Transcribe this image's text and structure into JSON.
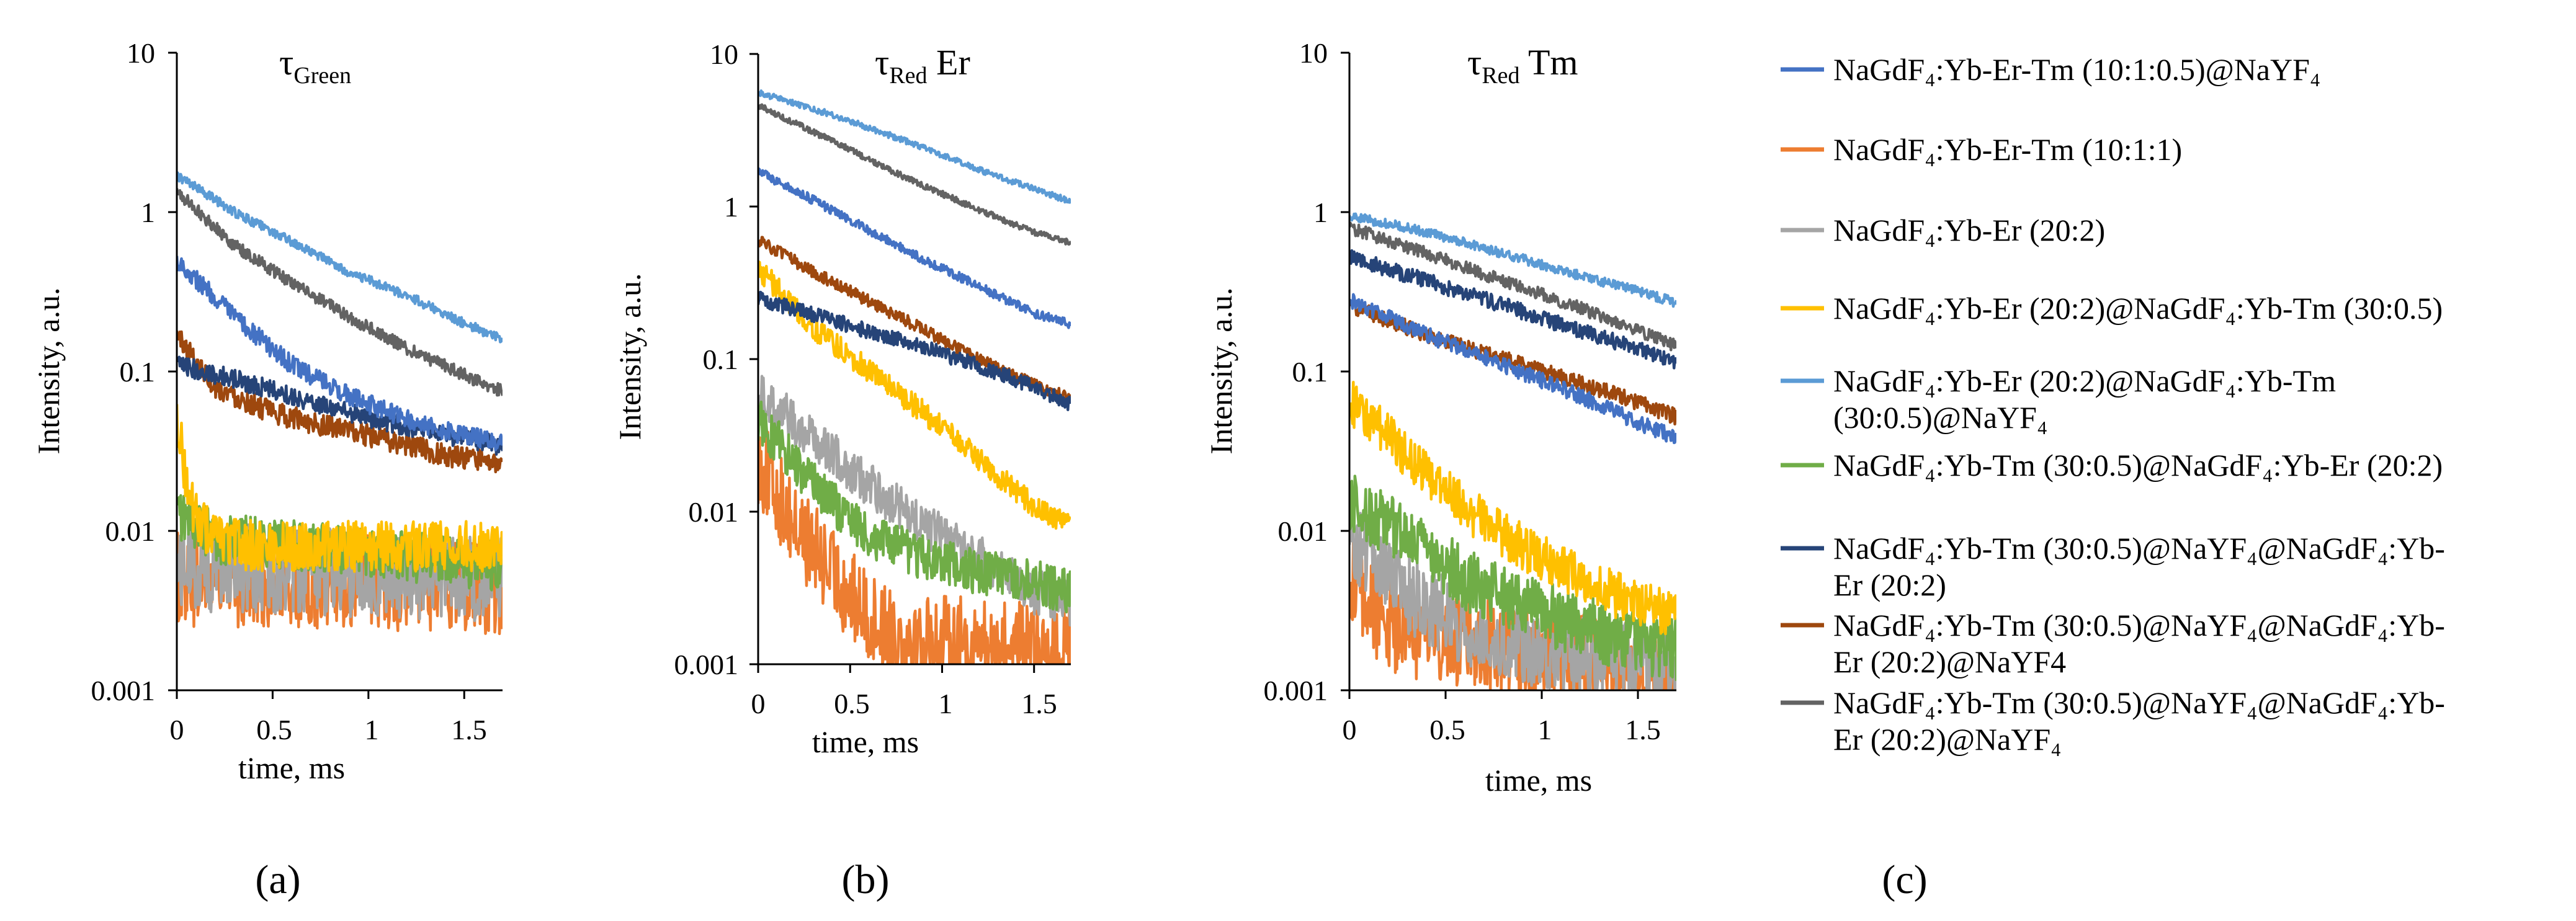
{
  "colors": {
    "s1": "#4472C4",
    "s2": "#ED7D31",
    "s3": "#A5A5A5",
    "s4": "#FFC000",
    "s5": "#5B9BD5",
    "s6": "#70AD47",
    "s7": "#264478",
    "s8": "#9E480E",
    "s9": "#636363"
  },
  "panel_labels": [
    "(a)",
    "(b)",
    "(c)"
  ],
  "legend": [
    {
      "key": "s1",
      "lines": [
        "NaGdF₄:Yb-Er-Tm (10:1:0.5)@NaYF₄"
      ]
    },
    {
      "key": "s2",
      "lines": [
        "NaGdF₄:Yb-Er-Tm (10:1:1)"
      ]
    },
    {
      "key": "s3",
      "lines": [
        "NaGdF₄:Yb-Er (20:2)"
      ]
    },
    {
      "key": "s4",
      "lines": [
        "NaGdF₄:Yb-Er (20:2)@NaGdF₄:Yb-Tm (30:0.5)"
      ]
    },
    {
      "key": "s5",
      "lines": [
        "NaGdF₄:Yb-Er (20:2)@NaGdF₄:Yb-Tm",
        "(30:0.5)@NaYF₄"
      ]
    },
    {
      "key": "s6",
      "lines": [
        "NaGdF₄:Yb-Tm (30:0.5)@NaGdF₄:Yb-Er (20:2)"
      ]
    },
    {
      "key": "s7",
      "lines": [
        "NaGdF₄:Yb-Tm (30:0.5)@NaYF₄@NaGdF₄:Yb-",
        "Er (20:2)"
      ]
    },
    {
      "key": "s8",
      "lines": [
        "NaGdF₄:Yb-Tm (30:0.5)@NaYF₄@NaGdF₄:Yb-",
        "Er (20:2)@NaYF4"
      ]
    },
    {
      "key": "s9",
      "lines": [
        "NaGdF₄:Yb-Tm (30:0.5)@NaYF₄@NaGdF₄:Yb-",
        "Er (20:2)@NaYF₄"
      ]
    }
  ],
  "chart_data": [
    {
      "type": "line",
      "id": "a",
      "title": {
        "main": "τ",
        "sub": "Green",
        "suffix": ""
      },
      "xlabel": "time, ms",
      "ylabel": "Intensity, a.u.",
      "yscale": "log",
      "xlim": [
        0,
        1.7
      ],
      "ylim": [
        0.001,
        10
      ],
      "xticks": [
        "0",
        "0.5",
        "1",
        "1.5"
      ],
      "yticks": [
        "0.001",
        "0.01",
        "0.1",
        "1",
        "10"
      ],
      "series": [
        {
          "key": "s1",
          "x": [
            0,
            0.3,
            0.6,
            0.9,
            1.2,
            1.5,
            1.7
          ],
          "y": [
            0.5,
            0.22,
            0.11,
            0.07,
            0.05,
            0.04,
            0.035
          ],
          "noise": 0.06,
          "floor": 0
        },
        {
          "key": "s2",
          "x": [
            0,
            1.7
          ],
          "y": [
            0.005,
            0.0045
          ],
          "noise": 0.3,
          "floor": 0.001
        },
        {
          "key": "s3",
          "x": [
            0,
            1.7
          ],
          "y": [
            0.006,
            0.005
          ],
          "noise": 0.28,
          "floor": 0.001
        },
        {
          "key": "s4",
          "x": [
            0,
            0.05,
            0.1,
            0.2,
            0.4,
            1.7
          ],
          "y": [
            0.055,
            0.02,
            0.012,
            0.009,
            0.008,
            0.008
          ],
          "noise": 0.16,
          "floor": 0
        },
        {
          "key": "s5",
          "x": [
            0,
            0.3,
            0.6,
            0.9,
            1.2,
            1.5,
            1.7
          ],
          "y": [
            1.7,
            1.0,
            0.65,
            0.42,
            0.3,
            0.2,
            0.16
          ],
          "noise": 0.03,
          "floor": 0
        },
        {
          "key": "s6",
          "x": [
            0,
            0.2,
            1.7
          ],
          "y": [
            0.013,
            0.009,
            0.006
          ],
          "noise": 0.16,
          "floor": 0
        },
        {
          "key": "s7",
          "x": [
            0,
            0.3,
            0.6,
            0.9,
            1.2,
            1.5,
            1.7
          ],
          "y": [
            0.11,
            0.09,
            0.07,
            0.055,
            0.045,
            0.038,
            0.034
          ],
          "noise": 0.06,
          "floor": 0
        },
        {
          "key": "s8",
          "x": [
            0,
            0.2,
            0.5,
            0.8,
            1.1,
            1.4,
            1.7
          ],
          "y": [
            0.17,
            0.08,
            0.055,
            0.045,
            0.037,
            0.03,
            0.026
          ],
          "noise": 0.07,
          "floor": 0
        },
        {
          "key": "s9",
          "x": [
            0,
            0.3,
            0.6,
            0.9,
            1.2,
            1.5,
            1.7
          ],
          "y": [
            1.35,
            0.62,
            0.36,
            0.22,
            0.14,
            0.095,
            0.075
          ],
          "noise": 0.04,
          "floor": 0
        }
      ]
    },
    {
      "type": "line",
      "id": "b",
      "title": {
        "main": "τ",
        "sub": "Red",
        "suffix": " Er"
      },
      "xlabel": "time, ms",
      "ylabel": "Intensity, a.u.",
      "yscale": "log",
      "xlim": [
        0,
        1.7
      ],
      "ylim": [
        0.001,
        10
      ],
      "xticks": [
        "0",
        "0.5",
        "1",
        "1.5"
      ],
      "yticks": [
        "0.001",
        "0.01",
        "0.1",
        "1",
        "10"
      ],
      "series": [
        {
          "key": "s1",
          "x": [
            0,
            0.3,
            0.6,
            0.9,
            1.2,
            1.5,
            1.7
          ],
          "y": [
            1.7,
            1.1,
            0.7,
            0.45,
            0.3,
            0.2,
            0.17
          ],
          "noise": 0.03,
          "floor": 0
        },
        {
          "key": "s2",
          "x": [
            0,
            0.2,
            0.4,
            0.6,
            0.8,
            1.7
          ],
          "y": [
            0.022,
            0.008,
            0.004,
            0.002,
            0.0015,
            0.0012
          ],
          "noise": 0.3,
          "floor": 0.001
        },
        {
          "key": "s3",
          "x": [
            0,
            0.3,
            0.6,
            0.9,
            1.2,
            1.5,
            1.7
          ],
          "y": [
            0.06,
            0.03,
            0.015,
            0.008,
            0.005,
            0.003,
            0.0025
          ],
          "noise": 0.15,
          "floor": 0.001
        },
        {
          "key": "s4",
          "x": [
            0,
            0.3,
            0.6,
            0.9,
            1.2,
            1.5,
            1.7
          ],
          "y": [
            0.4,
            0.16,
            0.085,
            0.045,
            0.022,
            0.011,
            0.008
          ],
          "noise": 0.08,
          "floor": 0
        },
        {
          "key": "s5",
          "x": [
            0,
            0.4,
            0.8,
            1.2,
            1.5,
            1.7
          ],
          "y": [
            5.6,
            4.0,
            2.7,
            1.75,
            1.3,
            1.08
          ],
          "noise": 0.02,
          "floor": 0
        },
        {
          "key": "s6",
          "x": [
            0,
            0.3,
            0.6,
            0.9,
            1.2,
            1.5,
            1.7
          ],
          "y": [
            0.04,
            0.015,
            0.007,
            0.005,
            0.004,
            0.0035,
            0.003
          ],
          "noise": 0.15,
          "floor": 0.001
        },
        {
          "key": "s7",
          "x": [
            0,
            0.4,
            0.8,
            1.2,
            1.5,
            1.7
          ],
          "y": [
            0.25,
            0.18,
            0.13,
            0.09,
            0.066,
            0.05
          ],
          "noise": 0.05,
          "floor": 0
        },
        {
          "key": "s8",
          "x": [
            0,
            0.4,
            0.8,
            1.2,
            1.5,
            1.7
          ],
          "y": [
            0.6,
            0.32,
            0.18,
            0.1,
            0.068,
            0.055
          ],
          "noise": 0.04,
          "floor": 0
        },
        {
          "key": "s9",
          "x": [
            0,
            0.4,
            0.8,
            1.2,
            1.5,
            1.7
          ],
          "y": [
            4.6,
            2.7,
            1.55,
            0.95,
            0.68,
            0.58
          ],
          "noise": 0.02,
          "floor": 0
        }
      ]
    },
    {
      "type": "line",
      "id": "c",
      "title": {
        "main": "τ",
        "sub": "Red",
        "suffix": " Tm"
      },
      "xlabel": "time, ms",
      "ylabel": "Intensity, a.u.",
      "yscale": "log",
      "xlim": [
        0,
        1.7
      ],
      "ylim": [
        0.001,
        10
      ],
      "xticks": [
        "0",
        "0.5",
        "1",
        "1.5"
      ],
      "yticks": [
        "0.001",
        "0.01",
        "0.1",
        "1",
        "10"
      ],
      "series": [
        {
          "key": "s1",
          "x": [
            0,
            0.4,
            0.8,
            1.2,
            1.5,
            1.7
          ],
          "y": [
            0.28,
            0.17,
            0.11,
            0.07,
            0.048,
            0.038
          ],
          "noise": 0.05,
          "floor": 0
        },
        {
          "key": "s2",
          "x": [
            0,
            0.2,
            1.7
          ],
          "y": [
            0.005,
            0.0025,
            0.0012
          ],
          "noise": 0.3,
          "floor": 0.001
        },
        {
          "key": "s3",
          "x": [
            0,
            0.3,
            0.6,
            1.0,
            1.7
          ],
          "y": [
            0.009,
            0.004,
            0.0025,
            0.0018,
            0.0014
          ],
          "noise": 0.25,
          "floor": 0.001
        },
        {
          "key": "s4",
          "x": [
            0,
            0.3,
            0.6,
            0.9,
            1.2,
            1.5,
            1.7
          ],
          "y": [
            0.065,
            0.03,
            0.014,
            0.008,
            0.005,
            0.0035,
            0.003
          ],
          "noise": 0.15,
          "floor": 0.001
        },
        {
          "key": "s5",
          "x": [
            0,
            0.4,
            0.8,
            1.2,
            1.5,
            1.7
          ],
          "y": [
            0.95,
            0.75,
            0.55,
            0.4,
            0.32,
            0.27
          ],
          "noise": 0.03,
          "floor": 0
        },
        {
          "key": "s6",
          "x": [
            0,
            0.3,
            0.6,
            0.9,
            1.2,
            1.5,
            1.7
          ],
          "y": [
            0.015,
            0.009,
            0.005,
            0.0035,
            0.0025,
            0.002,
            0.0018
          ],
          "noise": 0.2,
          "floor": 0.001
        },
        {
          "key": "s7",
          "x": [
            0,
            0.4,
            0.8,
            1.2,
            1.5,
            1.7
          ],
          "y": [
            0.52,
            0.37,
            0.26,
            0.18,
            0.14,
            0.115
          ],
          "noise": 0.05,
          "floor": 0
        },
        {
          "key": "s8",
          "x": [
            0,
            0.4,
            0.8,
            1.2,
            1.5,
            1.7
          ],
          "y": [
            0.26,
            0.17,
            0.12,
            0.085,
            0.064,
            0.052
          ],
          "noise": 0.05,
          "floor": 0
        },
        {
          "key": "s9",
          "x": [
            0,
            0.4,
            0.8,
            1.2,
            1.5,
            1.7
          ],
          "y": [
            0.8,
            0.55,
            0.37,
            0.25,
            0.18,
            0.145
          ],
          "noise": 0.04,
          "floor": 0
        }
      ]
    }
  ]
}
